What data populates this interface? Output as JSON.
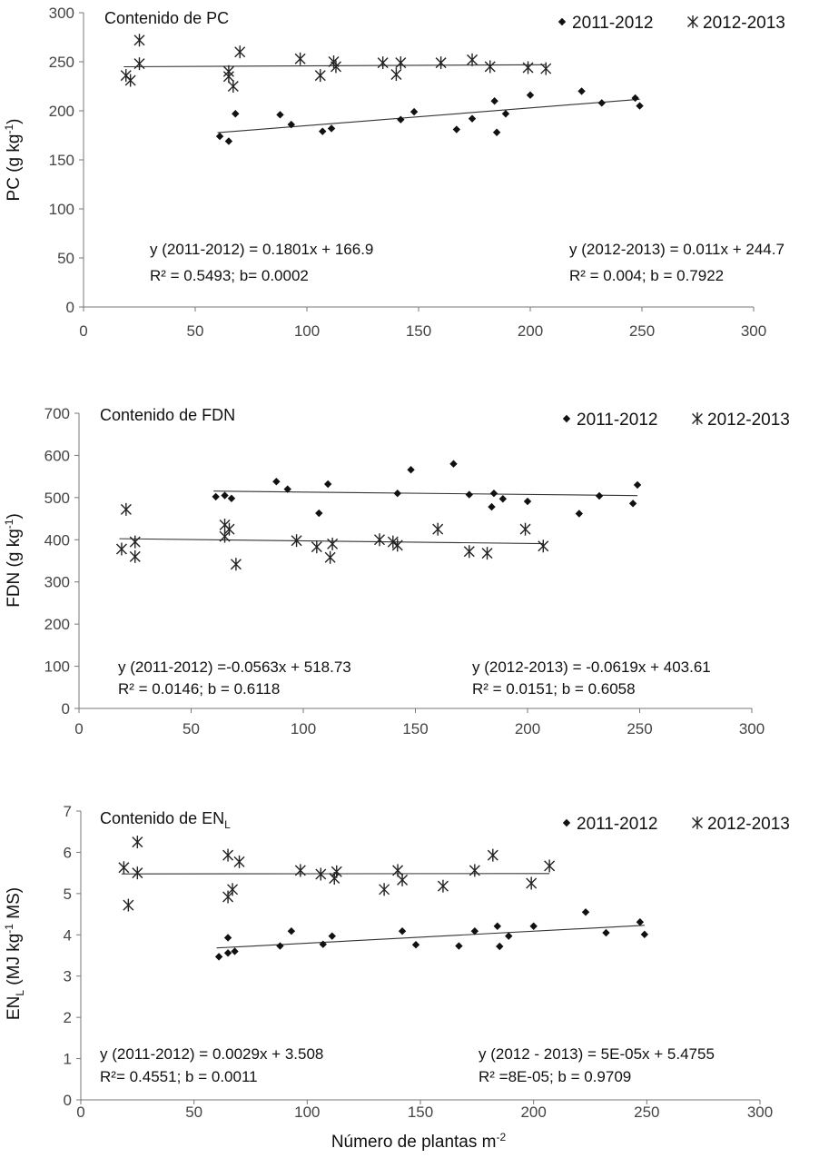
{
  "chart_data": [
    {
      "type": "scatter",
      "title": "Contenido de PC",
      "ylabel": "PC (g kg-1)",
      "xlabel": "",
      "xlim": [
        0,
        300
      ],
      "ylim": [
        0,
        300
      ],
      "xticks": [
        0,
        50,
        100,
        150,
        200,
        250,
        300
      ],
      "yticks": [
        0,
        50,
        100,
        150,
        200,
        250,
        300
      ],
      "series": [
        {
          "name": "2011-2012",
          "marker": "diamond",
          "points": [
            [
              61,
              174
            ],
            [
              65,
              169
            ],
            [
              68,
              197
            ],
            [
              88,
              196
            ],
            [
              93,
              186
            ],
            [
              107,
              179
            ],
            [
              111,
              182
            ],
            [
              142,
              191
            ],
            [
              148,
              199
            ],
            [
              167,
              181
            ],
            [
              174,
              192
            ],
            [
              184,
              210
            ],
            [
              185,
              178
            ],
            [
              189,
              197
            ],
            [
              200,
              216
            ],
            [
              223,
              220
            ],
            [
              232,
              208
            ],
            [
              247,
              213
            ],
            [
              249,
              205
            ]
          ],
          "fit": {
            "slope": 0.1801,
            "intercept": 166.9,
            "x": [
              60,
              249
            ]
          }
        },
        {
          "name": "2012-2013",
          "marker": "star",
          "points": [
            [
              19,
              236
            ],
            [
              21,
              231
            ],
            [
              25,
              272
            ],
            [
              25,
              248
            ],
            [
              65,
              240
            ],
            [
              65,
              235
            ],
            [
              67,
              225
            ],
            [
              70,
              260
            ],
            [
              97,
              253
            ],
            [
              106,
              236
            ],
            [
              112,
              250
            ],
            [
              113,
              245
            ],
            [
              134,
              249
            ],
            [
              140,
              237
            ],
            [
              142,
              249
            ],
            [
              160,
              249
            ],
            [
              174,
              252
            ],
            [
              182,
              245
            ],
            [
              199,
              244
            ],
            [
              207,
              243
            ]
          ],
          "fit": {
            "slope": 0.011,
            "intercept": 244.7,
            "x": [
              18,
              207
            ]
          }
        }
      ],
      "annotations": [
        {
          "line1": "y (2011-2012) = 0.1801x + 166.9",
          "line2": "R² = 0.5493; b= 0.0002"
        },
        {
          "line1": "y (2012-2013) = 0.011x + 244.7",
          "line2": "R² = 0.004; b = 0.7922"
        }
      ]
    },
    {
      "type": "scatter",
      "title": "Contenido de FDN",
      "ylabel": "FDN (g kg-1)",
      "xlabel": "",
      "xlim": [
        0,
        300
      ],
      "ylim": [
        0,
        700
      ],
      "xticks": [
        0,
        50,
        100,
        150,
        200,
        250,
        300
      ],
      "yticks": [
        0,
        100,
        200,
        300,
        400,
        500,
        600,
        700
      ],
      "series": [
        {
          "name": "2011-2012",
          "marker": "diamond",
          "points": [
            [
              61,
              502
            ],
            [
              65,
              505
            ],
            [
              68,
              498
            ],
            [
              88,
              538
            ],
            [
              93,
              520
            ],
            [
              107,
              463
            ],
            [
              111,
              532
            ],
            [
              142,
              510
            ],
            [
              148,
              566
            ],
            [
              167,
              580
            ],
            [
              174,
              507
            ],
            [
              184,
              478
            ],
            [
              185,
              510
            ],
            [
              189,
              497
            ],
            [
              200,
              491
            ],
            [
              223,
              462
            ],
            [
              232,
              504
            ],
            [
              247,
              486
            ],
            [
              249,
              530
            ]
          ],
          "fit": {
            "slope": -0.0563,
            "intercept": 518.73,
            "x": [
              60,
              249
            ]
          }
        },
        {
          "name": "2012-2013",
          "marker": "star",
          "points": [
            [
              19,
              378
            ],
            [
              21,
              472
            ],
            [
              25,
              395
            ],
            [
              25,
              360
            ],
            [
              65,
              435
            ],
            [
              65,
              408
            ],
            [
              67,
              425
            ],
            [
              70,
              342
            ],
            [
              97,
              398
            ],
            [
              106,
              383
            ],
            [
              112,
              358
            ],
            [
              113,
              390
            ],
            [
              134,
              400
            ],
            [
              140,
              395
            ],
            [
              142,
              387
            ],
            [
              160,
              425
            ],
            [
              174,
              372
            ],
            [
              182,
              368
            ],
            [
              199,
              425
            ],
            [
              207,
              385
            ]
          ],
          "fit": {
            "slope": -0.0619,
            "intercept": 403.61,
            "x": [
              18,
              207
            ]
          }
        }
      ],
      "annotations": [
        {
          "line1": "y (2011-2012) =-0.0563x + 518.73",
          "line2": "R² = 0.0146; b = 0.6118"
        },
        {
          "line1": "y (2012-2013) = -0.0619x + 403.61",
          "line2": "R² = 0.0151; b = 0.6058"
        }
      ]
    },
    {
      "type": "scatter",
      "title": "Contenido de ENL",
      "ylabel": "ENL (MJ kg-1 MS)",
      "xlabel": "Número de plantas m-2",
      "xlim": [
        0,
        300
      ],
      "ylim": [
        0,
        7
      ],
      "xticks": [
        0,
        50,
        100,
        150,
        200,
        250,
        300
      ],
      "yticks": [
        0,
        1,
        2,
        3,
        4,
        5,
        6,
        7
      ],
      "series": [
        {
          "name": "2011-2012",
          "marker": "diamond",
          "points": [
            [
              61,
              3.47
            ],
            [
              65,
              3.93
            ],
            [
              65,
              3.56
            ],
            [
              68,
              3.6
            ],
            [
              88,
              3.73
            ],
            [
              93,
              4.09
            ],
            [
              107,
              3.77
            ],
            [
              111,
              3.97
            ],
            [
              142,
              4.09
            ],
            [
              148,
              3.76
            ],
            [
              167,
              3.73
            ],
            [
              174,
              4.09
            ],
            [
              184,
              4.21
            ],
            [
              185,
              3.72
            ],
            [
              189,
              3.97
            ],
            [
              200,
              4.21
            ],
            [
              223,
              4.55
            ],
            [
              232,
              4.05
            ],
            [
              247,
              4.31
            ],
            [
              249,
              4.01
            ]
          ],
          "fit": {
            "slope": 0.0029,
            "intercept": 3.508,
            "x": [
              60,
              249
            ]
          }
        },
        {
          "name": "2012-2013",
          "marker": "star",
          "points": [
            [
              19,
              5.63
            ],
            [
              21,
              4.72
            ],
            [
              25,
              6.25
            ],
            [
              25,
              5.5
            ],
            [
              65,
              5.93
            ],
            [
              65,
              4.92
            ],
            [
              67,
              5.1
            ],
            [
              70,
              5.77
            ],
            [
              97,
              5.56
            ],
            [
              106,
              5.47
            ],
            [
              112,
              5.37
            ],
            [
              113,
              5.53
            ],
            [
              134,
              5.1
            ],
            [
              140,
              5.56
            ],
            [
              142,
              5.33
            ],
            [
              160,
              5.18
            ],
            [
              174,
              5.56
            ],
            [
              182,
              5.93
            ],
            [
              199,
              5.25
            ],
            [
              207,
              5.67
            ]
          ],
          "fit": {
            "slope": 5e-05,
            "intercept": 5.4755,
            "x": [
              18,
              207
            ]
          }
        }
      ],
      "annotations": [
        {
          "line1": "y (2011-2012) = 0.0029x + 3.508",
          "line2": "R²= 0.4551; b = 0.0011"
        },
        {
          "line1": "y (2012 - 2013) = 5E-05x + 5.4755",
          "line2": "R² =8E-05; b = 0.9709"
        }
      ]
    }
  ],
  "legend": {
    "series1": "2011-2012",
    "series2": "2012-2013"
  }
}
